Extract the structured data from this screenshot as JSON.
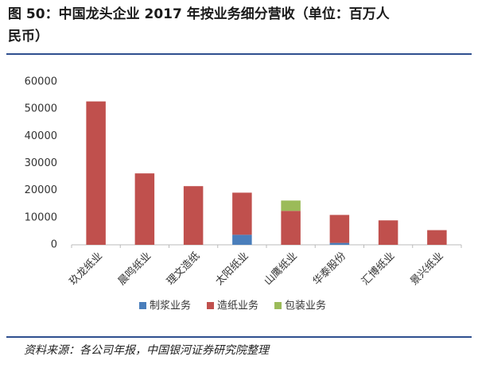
{
  "chart_data": {
    "type": "stacked_bar",
    "title": "图 50：中国龙头企业 2017 年按业务细分营收（单位：百万人民币）",
    "source": "资料来源：各公司年报，中国银河证券研究院整理",
    "categories": [
      "玖龙纸业",
      "晨鸣纸业",
      "理文造纸",
      "太阳纸业",
      "山鹰纸业",
      "华泰股份",
      "汇博纸业",
      "景兴纸业"
    ],
    "series": [
      {
        "name": "制浆业务",
        "color": "#4a7ebb",
        "values": [
          0,
          0,
          0,
          3700,
          0,
          700,
          0,
          0
        ]
      },
      {
        "name": "造纸业务",
        "color": "#c0504d",
        "values": [
          52800,
          26300,
          21600,
          15500,
          12500,
          10300,
          9000,
          5400
        ]
      },
      {
        "name": "包装业务",
        "color": "#9bbb59",
        "values": [
          0,
          0,
          0,
          0,
          3800,
          0,
          0,
          0
        ]
      }
    ],
    "ylim": [
      0,
      60000
    ],
    "yticks": [
      0,
      10000,
      20000,
      30000,
      40000,
      50000,
      60000
    ],
    "grid": false
  }
}
